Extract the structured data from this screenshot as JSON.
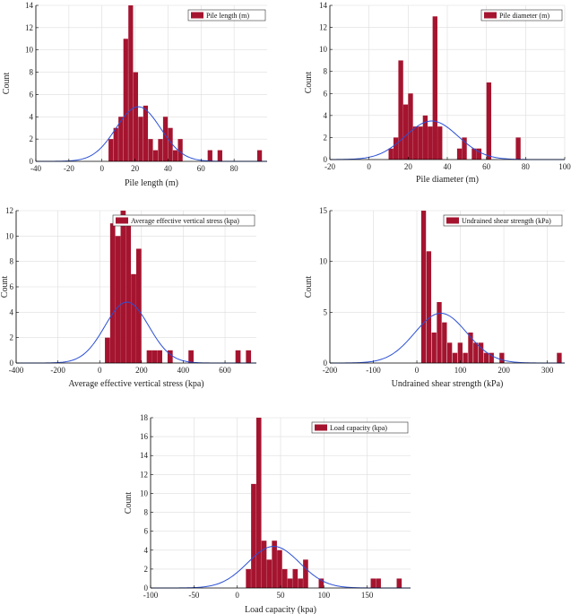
{
  "colors": {
    "bar": "#A5142F",
    "curve": "#2A4FD6",
    "grid": "#DDDDDD",
    "axis": "#000000"
  },
  "chart_data": [
    {
      "type": "bar",
      "xlabel": "Pile length (m)",
      "ylabel": "Count",
      "legend": "Pile length (m)",
      "xlim": [
        -40,
        100
      ],
      "ylim": [
        0,
        14
      ],
      "xticks": [
        -40,
        -20,
        0,
        20,
        40,
        60,
        80
      ],
      "yticks": [
        0,
        2,
        4,
        6,
        8,
        10,
        12,
        14
      ],
      "bin_width": 2.85,
      "bin_starts": [
        4,
        7,
        10,
        13,
        16,
        19,
        22,
        25,
        28,
        31,
        34,
        37,
        40,
        43,
        46,
        49,
        52,
        55,
        58,
        61,
        64,
        67,
        70,
        73,
        76,
        79,
        82,
        85,
        88,
        91,
        94
      ],
      "counts": [
        2,
        3,
        4,
        11,
        14,
        8,
        4,
        5,
        2,
        1,
        2,
        4,
        3,
        1,
        2,
        0,
        0,
        0,
        0,
        0,
        1,
        0,
        1,
        0,
        0,
        0,
        0,
        0,
        0,
        0,
        1
      ],
      "normal_fit": {
        "mean": 22,
        "peak": 4.9,
        "sd": 13.5
      },
      "grid": true,
      "legend_position": "top-right"
    },
    {
      "type": "bar",
      "xlabel": "Pile diameter (m)",
      "ylabel": "Count",
      "legend": "Pile diameter (m)",
      "xlim": [
        -20,
        100
      ],
      "ylim": [
        0,
        14
      ],
      "xticks": [
        -20,
        0,
        20,
        40,
        60,
        80,
        100
      ],
      "yticks": [
        0,
        2,
        4,
        6,
        8,
        10,
        12,
        14
      ],
      "bin_width": 2.45,
      "bin_starts": [
        10,
        12.5,
        15,
        17.5,
        20,
        22.5,
        25,
        27.5,
        30,
        32.5,
        35,
        37.5,
        40,
        42.5,
        45,
        47.5,
        50,
        52.5,
        55,
        57.5,
        60,
        62.5,
        65,
        67.5,
        70,
        72.5,
        75
      ],
      "counts": [
        1,
        2,
        9,
        5,
        6,
        3,
        3,
        4,
        3,
        13,
        3,
        0,
        0,
        0,
        1,
        2,
        0,
        1,
        1,
        0,
        7,
        0,
        0,
        0,
        0,
        0,
        2
      ],
      "normal_fit": {
        "mean": 32,
        "peak": 3.5,
        "sd": 13.5
      },
      "grid": true,
      "legend_position": "top-right"
    },
    {
      "type": "bar",
      "xlabel": "Average effective vertical stress (kpa)",
      "ylabel": "Count",
      "legend": "Average effective vertical stress (kpa)",
      "xlim": [
        -400,
        750
      ],
      "ylim": [
        0,
        12
      ],
      "xticks": [
        -400,
        -200,
        0,
        200,
        400,
        600
      ],
      "yticks": [
        0,
        2,
        4,
        6,
        8,
        10,
        12
      ],
      "bin_width": 24.5,
      "bin_starts": [
        25,
        50,
        75,
        100,
        125,
        150,
        175,
        200,
        225,
        250,
        275,
        300,
        325,
        350,
        375,
        400,
        425,
        450,
        475,
        500,
        525,
        550,
        575,
        600,
        625,
        650,
        675,
        700
      ],
      "counts": [
        2,
        11,
        10,
        12,
        11,
        7,
        9,
        0,
        1,
        1,
        1,
        0,
        1,
        0,
        0,
        0,
        1,
        0,
        0,
        0,
        0,
        0,
        0,
        0,
        0,
        1,
        0,
        1
      ],
      "normal_fit": {
        "mean": 130,
        "peak": 4.8,
        "sd": 105
      },
      "grid": true,
      "legend_position": "top-right"
    },
    {
      "type": "bar",
      "xlabel": "Undrained shear strength (kPa)",
      "ylabel": "Count",
      "legend": "Undrained shear strength (kPa)",
      "xlim": [
        -200,
        340
      ],
      "ylim": [
        0,
        15
      ],
      "xticks": [
        -200,
        -100,
        0,
        100,
        200,
        300
      ],
      "yticks": [
        0,
        5,
        10,
        15
      ],
      "bin_width": 11,
      "bin_starts": [
        10,
        22,
        34,
        46,
        58,
        70,
        82,
        94,
        106,
        118,
        130,
        142,
        154,
        166,
        178,
        190,
        202,
        214,
        226,
        238,
        250,
        262,
        274,
        286,
        298,
        310,
        322
      ],
      "counts": [
        15,
        11,
        3,
        6,
        4,
        2,
        1,
        2,
        1,
        3,
        2,
        2,
        1,
        1,
        0,
        1,
        0,
        0,
        0,
        0,
        0,
        0,
        0,
        0,
        0,
        0,
        1
      ],
      "normal_fit": {
        "mean": 55,
        "peak": 4.9,
        "sd": 60
      },
      "grid": true,
      "legend_position": "top-right"
    },
    {
      "type": "bar",
      "xlabel": "Load capacity (kpa)",
      "ylabel": "Count",
      "legend": "Load capacity (kpa)",
      "xlim": [
        -100,
        200
      ],
      "ylim": [
        0,
        18
      ],
      "xticks": [
        -100,
        -50,
        0,
        50,
        100,
        150
      ],
      "yticks": [
        0,
        2,
        4,
        6,
        8,
        10,
        12,
        14,
        16,
        18
      ],
      "bin_width": 5.8,
      "bin_starts": [
        10,
        16,
        22,
        28,
        34,
        40,
        46,
        52,
        58,
        64,
        70,
        76,
        82,
        88,
        94,
        100,
        106,
        112,
        118,
        124,
        130,
        136,
        142,
        148,
        154,
        160,
        166,
        172,
        178,
        184
      ],
      "counts": [
        2,
        11,
        18,
        5,
        3,
        5,
        4,
        2,
        1,
        2,
        1,
        3,
        0,
        0,
        1,
        0,
        0,
        0,
        0,
        0,
        0,
        0,
        0,
        0,
        1,
        1,
        0,
        0,
        0,
        1
      ],
      "normal_fit": {
        "mean": 42,
        "peak": 4.4,
        "sd": 30
      },
      "grid": true,
      "legend_position": "top-right"
    }
  ]
}
